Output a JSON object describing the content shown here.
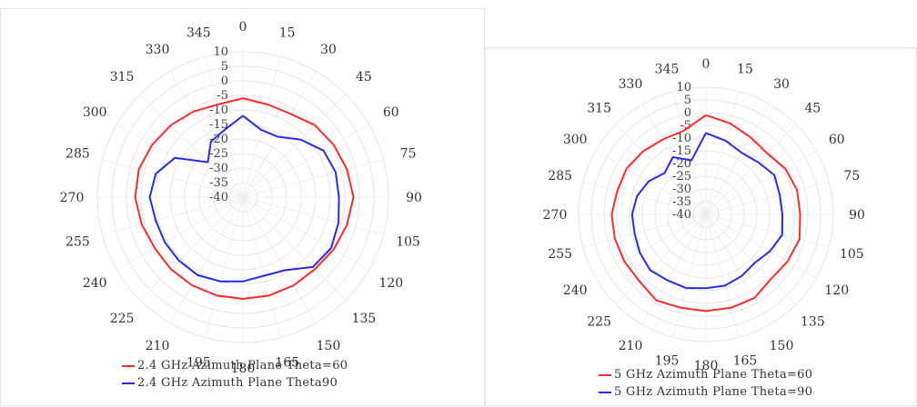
{
  "chart_data": [
    {
      "type": "polar-line",
      "title": "",
      "angles": [
        0,
        15,
        30,
        45,
        60,
        75,
        90,
        105,
        120,
        135,
        150,
        165,
        180,
        195,
        210,
        225,
        240,
        255,
        270,
        285,
        300,
        315,
        330,
        345
      ],
      "radial_ticks": [
        "10",
        "5",
        "0",
        "-5",
        "-10",
        "-15",
        "-20",
        "-25",
        "-30",
        "-35",
        "-40"
      ],
      "rlim": [
        -40,
        10
      ],
      "grid": true,
      "legend_position": "bottom-left",
      "series": [
        {
          "name": "2.4 GHz Azimuth Plane Theta=60",
          "color": "#ff2a2a",
          "values": [
            -6,
            -7,
            -7,
            -5,
            -4,
            -3,
            -2,
            -3,
            -4,
            -5,
            -5,
            -5,
            -5,
            -5,
            -5,
            -5,
            -5,
            -4,
            -3,
            -3,
            -4,
            -5,
            -6,
            -7
          ]
        },
        {
          "name": "2.4 GHz Azimuth Plane Theta90",
          "color": "#2a2aee",
          "values": [
            -12,
            -16,
            -16,
            -12,
            -8,
            -7,
            -7,
            -6,
            -5,
            -6,
            -11,
            -12,
            -11,
            -10,
            -9,
            -9,
            -9,
            -9,
            -8,
            -9,
            -13,
            -23,
            -18,
            -16
          ]
        }
      ]
    },
    {
      "type": "polar-line",
      "title": "",
      "angles": [
        0,
        15,
        30,
        45,
        60,
        75,
        90,
        105,
        120,
        135,
        150,
        165,
        180,
        195,
        210,
        225,
        240,
        255,
        270,
        285,
        300,
        315,
        330,
        345
      ],
      "radial_ticks": [
        "10",
        "5",
        "0",
        "-5",
        "-10",
        "-15",
        "-20",
        "-25",
        "-30",
        "-35",
        "-40"
      ],
      "rlim": [
        -40,
        10
      ],
      "grid": true,
      "legend_position": "bottom-left",
      "series": [
        {
          "name": "5 GHz Azimuth Plane Theta=60",
          "color": "#ff2a2a",
          "values": [
            -1,
            -3,
            -5,
            -6,
            -4,
            -3,
            -3,
            -2,
            -3,
            -4,
            -2,
            -2,
            -2,
            -2,
            -1,
            -3,
            -3,
            -3,
            -3,
            -4,
            -4,
            -5,
            -6,
            -6
          ]
        },
        {
          "name": "5 GHz Azimuth Plane Theta=90",
          "color": "#2a2aee",
          "values": [
            -8,
            -10,
            -12,
            -11,
            -9,
            -10,
            -10,
            -9,
            -11,
            -13,
            -12,
            -11,
            -11,
            -10,
            -10,
            -9,
            -10,
            -11,
            -11,
            -12,
            -14,
            -17,
            -14,
            -18
          ]
        }
      ]
    }
  ]
}
